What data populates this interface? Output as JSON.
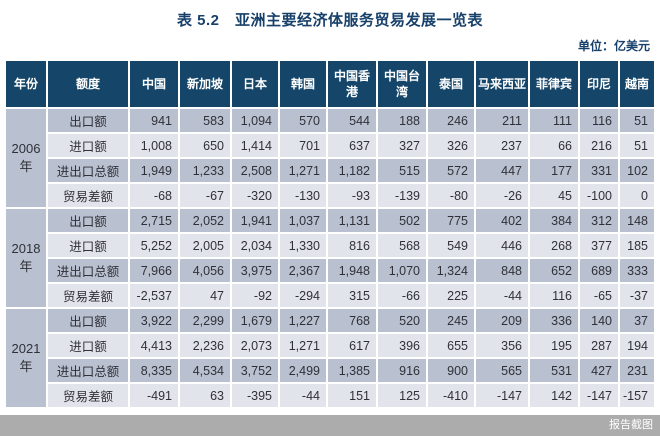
{
  "page": {
    "title": "表 5.2　亚洲主要经济体服务贸易发展一览表",
    "unit_label": "单位：亿美元",
    "watermark": "报告截图"
  },
  "colors": {
    "header_bg": "#154669",
    "year_cell_bg": "#c5cad8",
    "row_dark_bg": "#b9c0d0",
    "row_light_bg": "#e2e4ec",
    "title_text": "#17406a",
    "header_text": "#ffffff"
  },
  "table": {
    "columns": [
      "年份",
      "额度",
      "中国",
      "新加坡",
      "日本",
      "韩国",
      "中国香港",
      "中国台湾",
      "泰国",
      "马来西亚",
      "菲律宾",
      "印尼",
      "越南"
    ],
    "groups": [
      {
        "year": "2006年",
        "rows": [
          {
            "label": "出口额",
            "values": [
              "941",
              "583",
              "1,094",
              "570",
              "544",
              "188",
              "246",
              "211",
              "111",
              "116",
              "51"
            ]
          },
          {
            "label": "进口额",
            "values": [
              "1,008",
              "650",
              "1,414",
              "701",
              "637",
              "327",
              "326",
              "237",
              "66",
              "216",
              "51"
            ]
          },
          {
            "label": "进出口总额",
            "values": [
              "1,949",
              "1,233",
              "2,508",
              "1,271",
              "1,182",
              "515",
              "572",
              "447",
              "177",
              "331",
              "102"
            ]
          },
          {
            "label": "贸易差额",
            "values": [
              "-68",
              "-67",
              "-320",
              "-130",
              "-93",
              "-139",
              "-80",
              "-26",
              "45",
              "-100",
              "0"
            ]
          }
        ]
      },
      {
        "year": "2018年",
        "rows": [
          {
            "label": "出口额",
            "values": [
              "2,715",
              "2,052",
              "1,941",
              "1,037",
              "1,131",
              "502",
              "775",
              "402",
              "384",
              "312",
              "148"
            ]
          },
          {
            "label": "进口额",
            "values": [
              "5,252",
              "2,005",
              "2,034",
              "1,330",
              "816",
              "568",
              "549",
              "446",
              "268",
              "377",
              "185"
            ]
          },
          {
            "label": "进出口总额",
            "values": [
              "7,966",
              "4,056",
              "3,975",
              "2,367",
              "1,948",
              "1,070",
              "1,324",
              "848",
              "652",
              "689",
              "333"
            ]
          },
          {
            "label": "贸易差额",
            "values": [
              "-2,537",
              "47",
              "-92",
              "-294",
              "315",
              "-66",
              "225",
              "-44",
              "116",
              "-65",
              "-37"
            ]
          }
        ]
      },
      {
        "year": "2021年",
        "rows": [
          {
            "label": "出口额",
            "values": [
              "3,922",
              "2,299",
              "1,679",
              "1,227",
              "768",
              "520",
              "245",
              "209",
              "336",
              "140",
              "37"
            ]
          },
          {
            "label": "进口额",
            "values": [
              "4,413",
              "2,236",
              "2,073",
              "1,271",
              "617",
              "396",
              "655",
              "356",
              "195",
              "287",
              "194"
            ]
          },
          {
            "label": "进出口总额",
            "values": [
              "8,335",
              "4,534",
              "3,752",
              "2,499",
              "1,385",
              "916",
              "900",
              "565",
              "531",
              "427",
              "231"
            ]
          },
          {
            "label": "贸易差额",
            "values": [
              "-491",
              "63",
              "-395",
              "-44",
              "151",
              "125",
              "-410",
              "-147",
              "142",
              "-147",
              "-157"
            ]
          }
        ]
      }
    ]
  }
}
